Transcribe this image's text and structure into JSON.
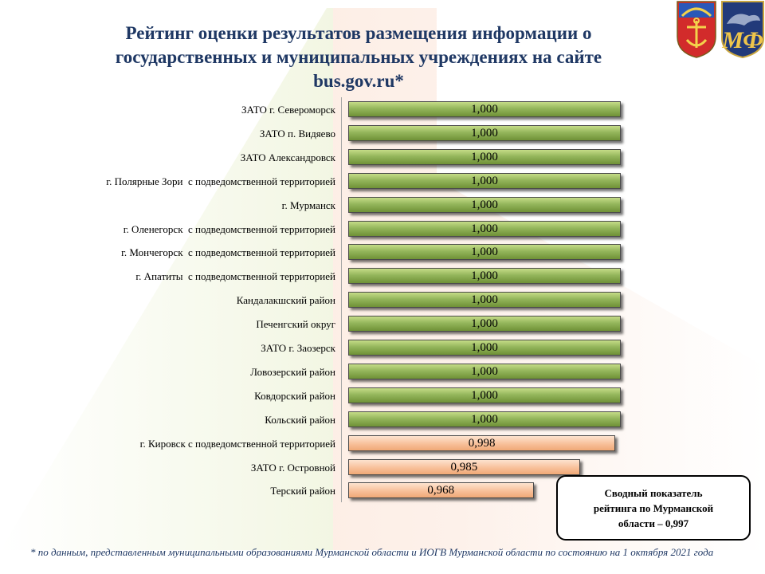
{
  "title": "Рейтинг оценки результатов размещения  информации о\nгосударственных и муниципальных учреждениях на сайте\nbus.gov.ru*",
  "colors": {
    "high": "#8fb159",
    "low": "#f6bf9a",
    "title": "#1f3864"
  },
  "icons": [
    "murmansk-coat-of-arms-icon",
    "ministry-finance-logo-icon"
  ],
  "chart_data": {
    "type": "bar",
    "orientation": "horizontal",
    "title": "",
    "xlabel": "",
    "ylabel": "",
    "xlim": [
      0.9,
      1.0
    ],
    "grid": false,
    "legend": "none",
    "categories": [
      "ЗАТО г. Североморск",
      "ЗАТО п. Видяево",
      "ЗАТО Александровск",
      "г. Полярные Зори  с подведомственной территорией",
      "г. Мурманск",
      "г. Оленегорск  с подведомственной территорией",
      "г. Мончегорск  с подведомственной территорией",
      "г. Апатиты  с подведомственной территорией",
      "Кандалакшский район",
      "Печенгский округ",
      "ЗАТО г. Заозерск",
      "Ловозерский район",
      "Ковдорский район",
      "Кольский район",
      "г. Кировск с подведомственной территорией",
      "ЗАТО г. Островной",
      "Терский район"
    ],
    "values": [
      1.0,
      1.0,
      1.0,
      1.0,
      1.0,
      1.0,
      1.0,
      1.0,
      1.0,
      1.0,
      1.0,
      1.0,
      1.0,
      1.0,
      0.998,
      0.985,
      0.968
    ],
    "value_labels": [
      "1,000",
      "1,000",
      "1,000",
      "1,000",
      "1,000",
      "1,000",
      "1,000",
      "1,000",
      "1,000",
      "1,000",
      "1,000",
      "1,000",
      "1,000",
      "1,000",
      "0,998",
      "0,985",
      "0,968"
    ]
  },
  "summary": "Сводный показатель\nрейтинга по Мурманской\nобласти – 0,997",
  "footnote": "* по данным, представленным  муниципальными образованиями Мурманской области и ИОГВ Мурманской области по состоянию на 1 октября 2021 года"
}
